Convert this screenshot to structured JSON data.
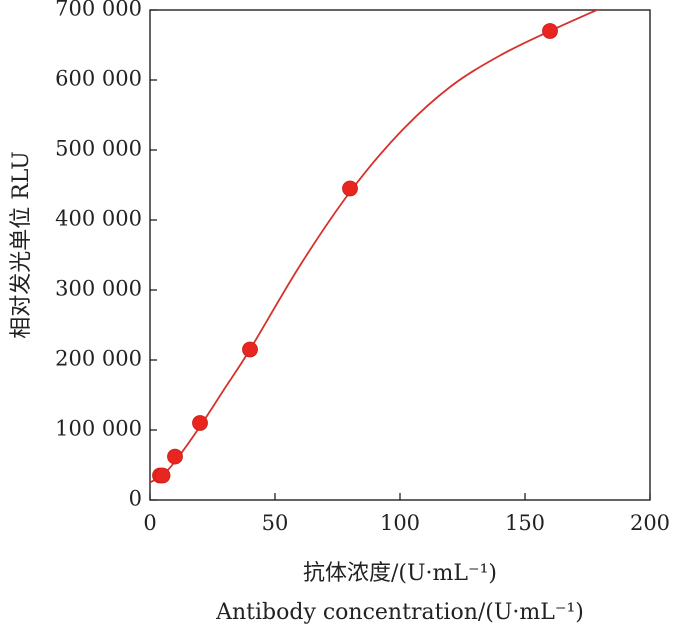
{
  "chart_data": {
    "type": "line",
    "x": [
      4,
      5,
      10,
      20,
      40,
      80,
      160
    ],
    "series": [
      {
        "values": [
          35000,
          35000,
          62000,
          110000,
          215000,
          445000,
          670000
        ],
        "color": "#e8251f",
        "marker": "circle"
      }
    ],
    "fit_curve": {
      "color": "#d7312c",
      "x": [
        0,
        5,
        10,
        20,
        30,
        40,
        60,
        80,
        100,
        120,
        140,
        160,
        180
      ],
      "y": [
        25000,
        36000,
        55000,
        105000,
        160000,
        215000,
        335000,
        440000,
        525000,
        590000,
        635000,
        670000,
        702000
      ]
    },
    "xlim": [
      0,
      200
    ],
    "ylim": [
      0,
      700000
    ],
    "x_ticks": [
      0,
      50,
      100,
      150,
      200
    ],
    "y_ticks": [
      0,
      100000,
      200000,
      300000,
      400000,
      500000,
      600000,
      700000
    ],
    "x_tick_labels": [
      "0",
      "50",
      "100",
      "150",
      "200"
    ],
    "y_tick_labels": [
      "0",
      "100 000",
      "200 000",
      "300 000",
      "400 000",
      "500 000",
      "600 000",
      "700 000"
    ],
    "xlabel_zh": "抗体浓度/(U·mL⁻¹)",
    "xlabel_en": "Antibody concentration/(U·mL⁻¹)",
    "ylabel": "相对发光单位 RLU",
    "grid": false,
    "legend": "none"
  }
}
